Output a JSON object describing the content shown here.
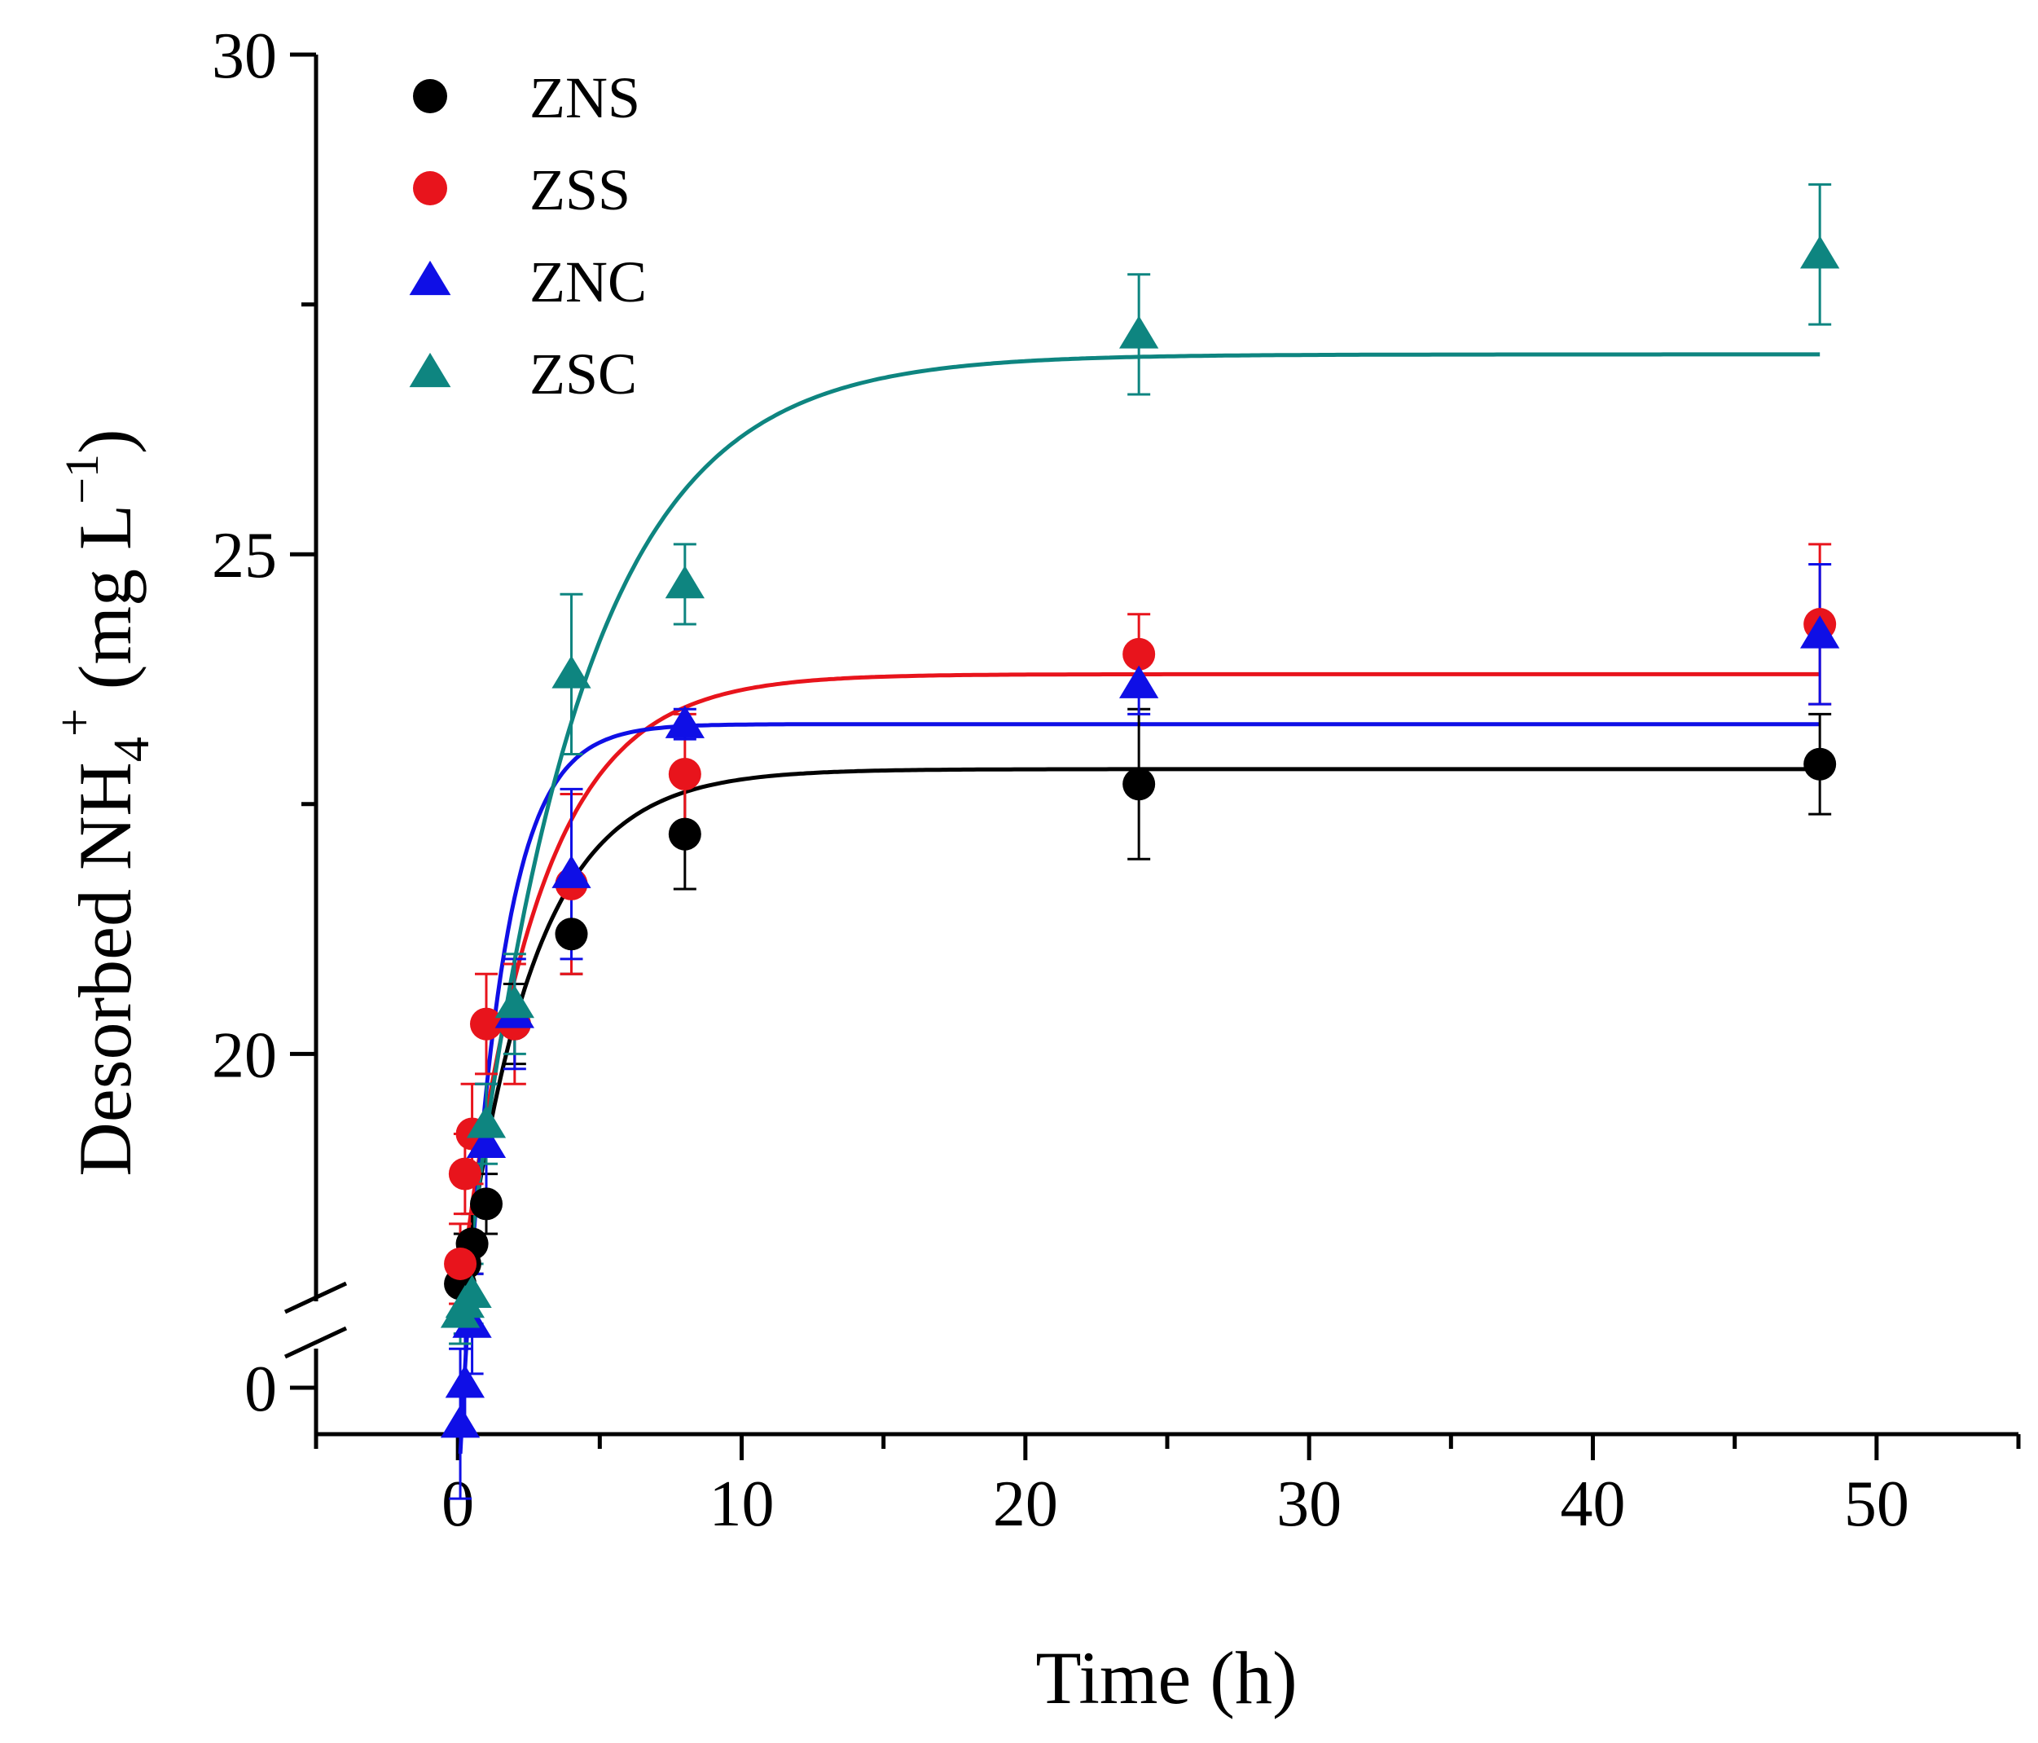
{
  "chart_data": {
    "type": "scatter",
    "title": "",
    "xlabel": "Time (h)",
    "ylabel": {
      "prefix": "Desorbed NH",
      "subscript": "4",
      "superscript": "+",
      "suffix": " (mg L",
      "unit_superscript": "−1",
      "close": ")"
    },
    "xlim": [
      -5,
      55
    ],
    "ylim_upper": [
      17.5,
      30
    ],
    "y_break": true,
    "x_ticks": [
      0,
      10,
      20,
      30,
      40,
      50
    ],
    "x_tick_labels": [
      "0",
      "10",
      "20",
      "30",
      "40",
      "50"
    ],
    "x_minor_step": 5,
    "y_ticks": [
      20,
      25,
      30
    ],
    "y_tick_labels": [
      "20",
      "25",
      "30"
    ],
    "y_zero_label": "0",
    "y_minor_step": 2.5,
    "legend_position": "top-left",
    "x": [
      0.083,
      0.25,
      0.5,
      1,
      2,
      4,
      8,
      24,
      48
    ],
    "series": [
      {
        "name": "ZNS",
        "color": "#000000",
        "marker": "circle",
        "values": [
          17.7,
          17.9,
          18.1,
          18.5,
          20.3,
          21.2,
          22.2,
          22.7,
          22.9
        ],
        "errors": [
          0.3,
          0.3,
          0.3,
          0.3,
          0.4,
          0.4,
          0.55,
          0.75,
          0.5
        ],
        "fit": {
          "model": "exponential",
          "y0": 17.4,
          "plateau": 22.85,
          "k": 0.4
        }
      },
      {
        "name": "ZSS",
        "color": "#e8141c",
        "marker": "circle",
        "values": [
          17.9,
          18.8,
          19.2,
          20.3,
          20.3,
          21.7,
          22.8,
          24.0,
          24.3
        ],
        "errors": [
          0.4,
          0.4,
          0.5,
          0.5,
          0.6,
          0.9,
          0.6,
          0.4,
          0.8
        ],
        "fit": {
          "model": "exponential",
          "y0": 17.6,
          "plateau": 23.8,
          "k": 0.37
        }
      },
      {
        "name": "ZNC",
        "color": "#0f0fe6",
        "marker": "triangle",
        "values": [
          16.3,
          16.7,
          17.3,
          19.1,
          20.4,
          21.8,
          23.3,
          23.7,
          24.2
        ],
        "errors": [
          0.75,
          0.5,
          0.5,
          0.6,
          0.55,
          0.85,
          0.15,
          0.3,
          0.7
        ],
        "fit": {
          "model": "exponential",
          "y0": 16.0,
          "plateau": 23.3,
          "k": 0.75
        }
      },
      {
        "name": "ZSC",
        "color": "#0e8580",
        "marker": "triangle",
        "values": [
          17.4,
          17.5,
          17.6,
          19.3,
          20.5,
          23.8,
          24.7,
          27.2,
          28.0
        ],
        "errors": [
          0.3,
          0.3,
          0.3,
          0.4,
          0.5,
          0.8,
          0.4,
          0.6,
          0.7
        ],
        "fit": {
          "model": "exponential",
          "y0": 17.2,
          "plateau": 27.0,
          "k": 0.25
        }
      }
    ]
  }
}
